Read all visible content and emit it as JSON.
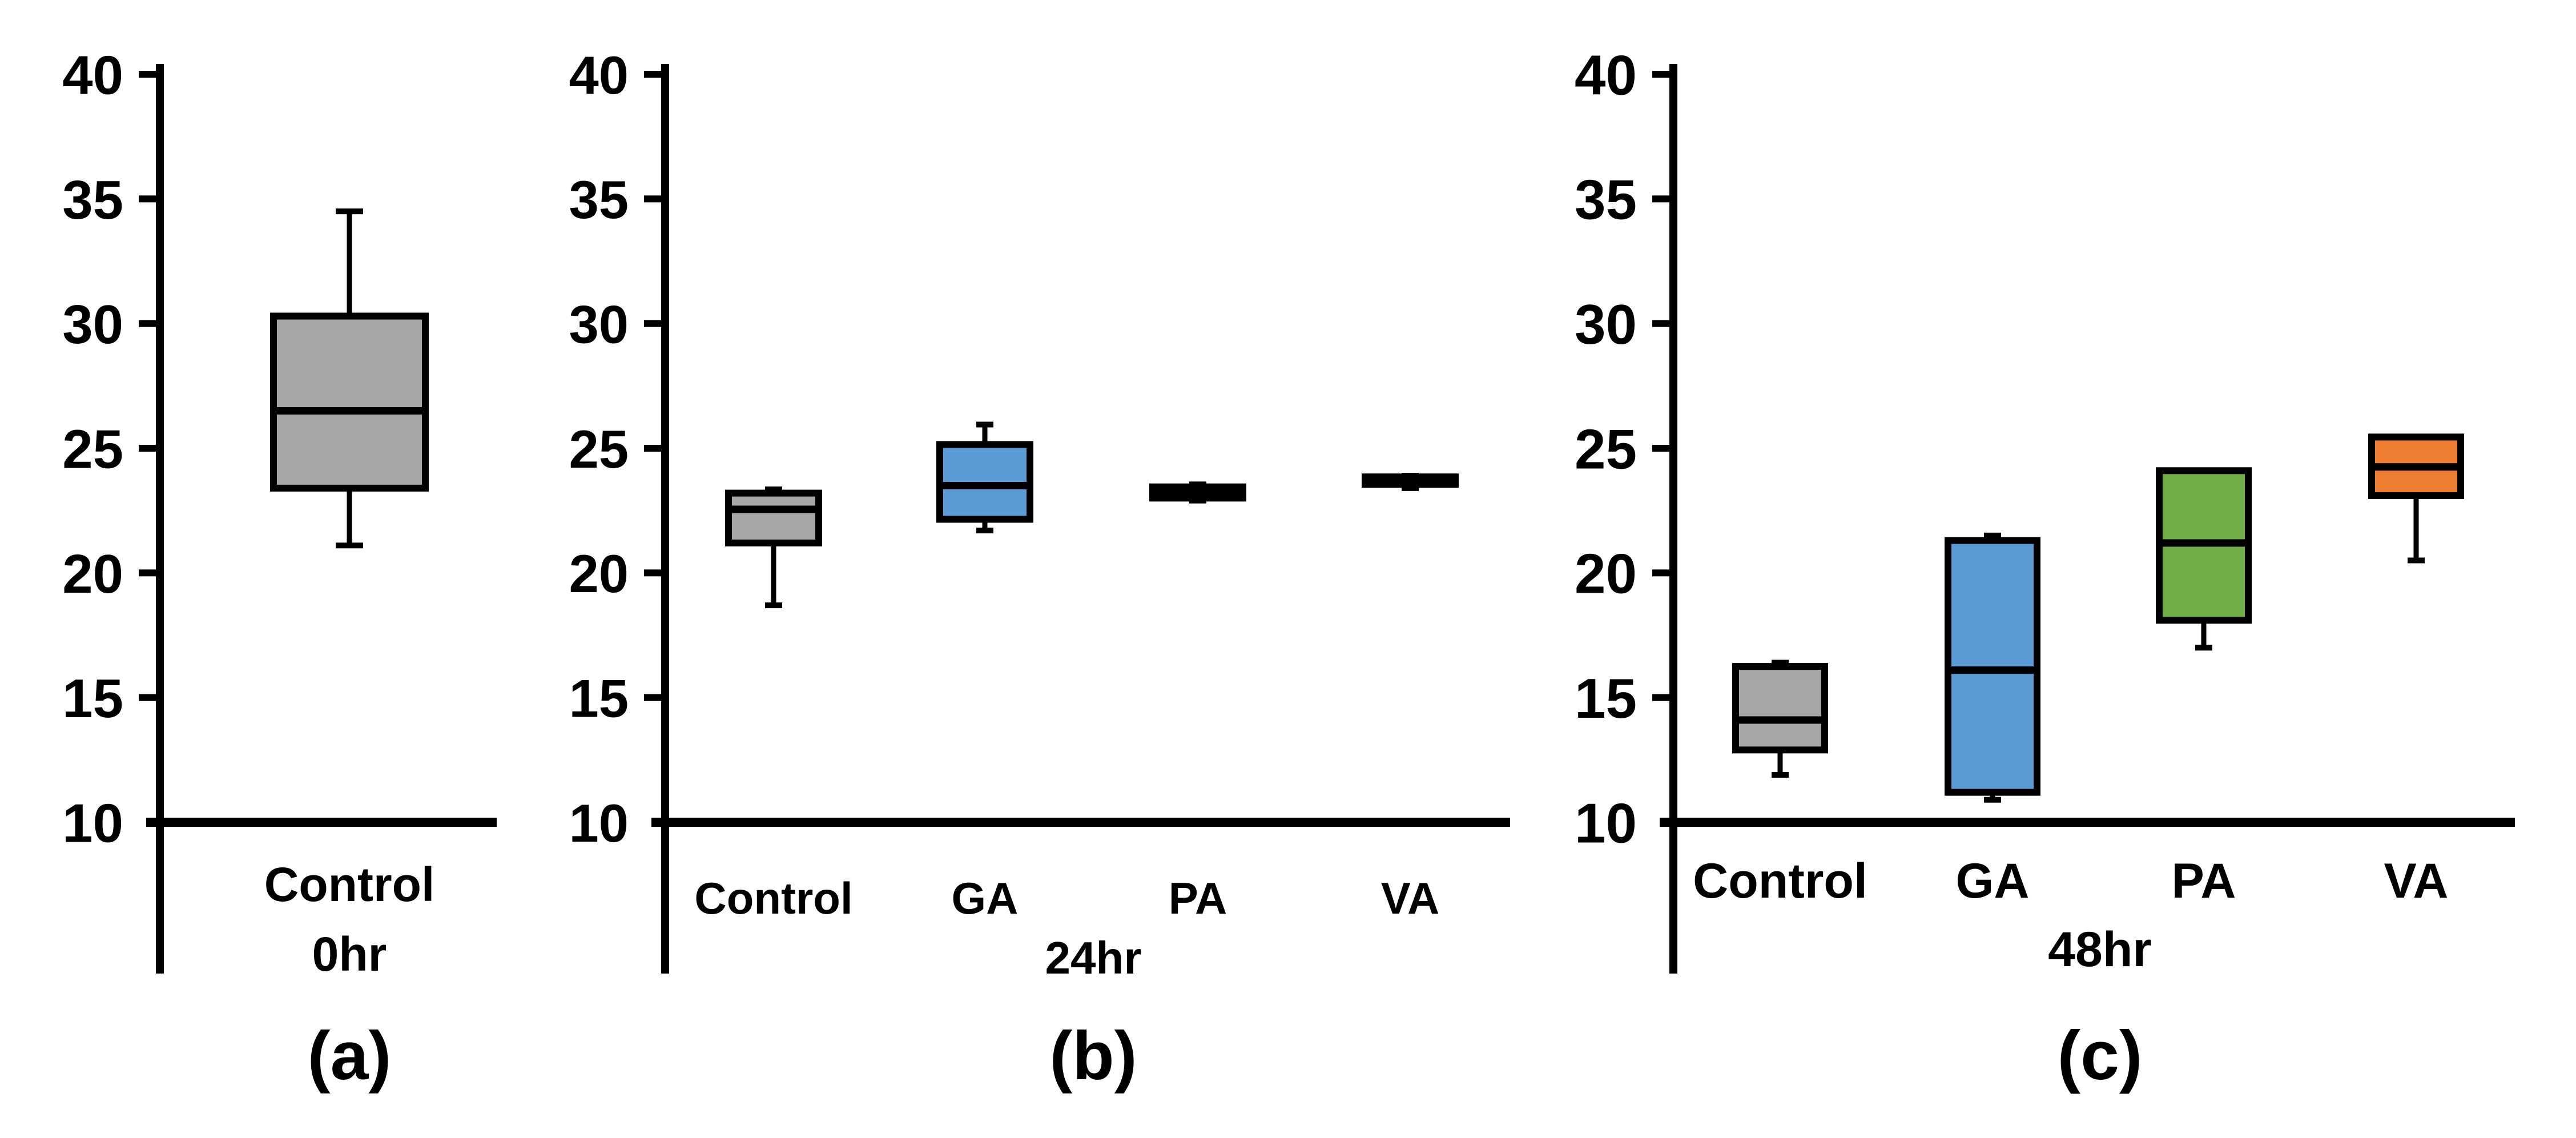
{
  "figure": {
    "background": "#ffffff",
    "axis_color": "#000000",
    "panel_captions": [
      "(a)",
      "(b)",
      "(c)"
    ],
    "group_labels": [
      "0hr",
      "24hr",
      "48hr"
    ]
  },
  "chart_data": [
    {
      "type": "box",
      "panel_caption": "(a)",
      "group_label": "0hr",
      "categories": [
        "Control"
      ],
      "y_axis": {
        "min": 10,
        "max": 40,
        "step": 5,
        "ticks": [
          10,
          15,
          20,
          25,
          30,
          35,
          40
        ]
      },
      "grid": "off",
      "legend": "none",
      "boxes": [
        {
          "category": "Control",
          "color": "#A6A6A6",
          "min": 21.1,
          "q1": 23.4,
          "median": 26.5,
          "q3": 30.3,
          "max": 34.5
        }
      ]
    },
    {
      "type": "box",
      "panel_caption": "(b)",
      "group_label": "24hr",
      "categories": [
        "Control",
        "GA",
        "PA",
        "VA"
      ],
      "y_axis": {
        "min": 10,
        "max": 40,
        "step": 5,
        "ticks": [
          10,
          15,
          20,
          25,
          30,
          35,
          40
        ]
      },
      "grid": "off",
      "legend": "none",
      "boxes": [
        {
          "category": "Control",
          "color": "#A6A6A6",
          "min": 18.7,
          "q1": 21.2,
          "median": 22.55,
          "q3": 23.2,
          "max": 23.35
        },
        {
          "category": "GA",
          "color": "#5B9BD5",
          "min": 21.7,
          "q1": 22.15,
          "median": 23.5,
          "q3": 25.15,
          "max": 25.95
        },
        {
          "category": "PA",
          "color": "#70AD47",
          "min": 22.9,
          "q1": 23.0,
          "median": 23.2,
          "q3": 23.45,
          "max": 23.55
        },
        {
          "category": "VA",
          "color": "#ED7D31",
          "min": 23.4,
          "q1": 23.55,
          "median": 23.7,
          "q3": 23.85,
          "max": 23.9
        }
      ]
    },
    {
      "type": "box",
      "panel_caption": "(c)",
      "group_label": "48hr",
      "categories": [
        "Control",
        "GA",
        "PA",
        "VA"
      ],
      "y_axis": {
        "min": 10,
        "max": 40,
        "step": 5,
        "ticks": [
          10,
          15,
          20,
          25,
          30,
          35,
          40
        ]
      },
      "grid": "off",
      "legend": "none",
      "boxes": [
        {
          "category": "Control",
          "color": "#A6A6A6",
          "min": 11.9,
          "q1": 12.9,
          "median": 14.1,
          "q3": 16.25,
          "max": 16.4
        },
        {
          "category": "GA",
          "color": "#5B9BD5",
          "min": 10.9,
          "q1": 11.2,
          "median": 16.1,
          "q3": 21.3,
          "max": 21.5
        },
        {
          "category": "PA",
          "color": "#70AD47",
          "min": 17.0,
          "q1": 18.1,
          "median": 21.2,
          "q3": 24.1,
          "max": 24.1
        },
        {
          "category": "VA",
          "color": "#ED7D31",
          "min": 20.5,
          "q1": 23.1,
          "median": 24.25,
          "q3": 25.45,
          "max": 25.45
        }
      ]
    }
  ]
}
